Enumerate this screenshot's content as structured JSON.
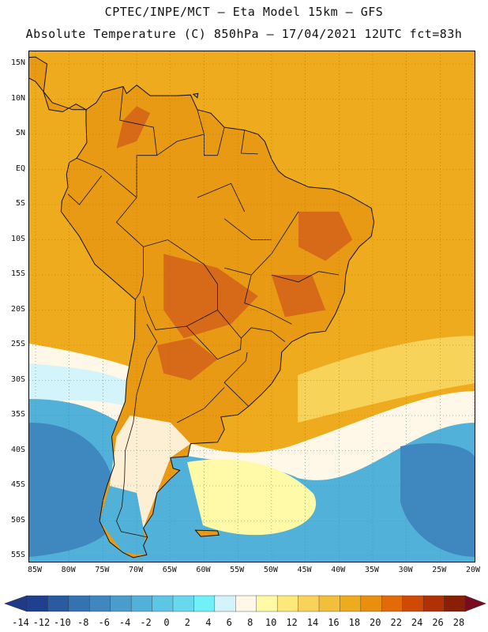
{
  "header": {
    "line1": "CPTEC/INPE/MCT –  Eta Model 15km – GFS",
    "line2": "Absolute Temperature (C) 850hPa – 17/04/2021 12UTC fct=83h"
  },
  "axes": {
    "lat_labels": [
      "15N",
      "10N",
      "5N",
      "EQ",
      "5S",
      "10S",
      "15S",
      "20S",
      "25S",
      "30S",
      "35S",
      "40S",
      "45S",
      "50S",
      "55S"
    ],
    "lon_labels": [
      "85W",
      "80W",
      "75W",
      "70W",
      "65W",
      "60W",
      "55W",
      "50W",
      "45W",
      "40W",
      "35W",
      "30W",
      "25W",
      "20W"
    ]
  },
  "colorbar": {
    "ticks": [
      "-14",
      "-12",
      "-10",
      "-8",
      "-6",
      "-4",
      "-2",
      "0",
      "2",
      "4",
      "6",
      "8",
      "10",
      "12",
      "14",
      "16",
      "18",
      "20",
      "22",
      "24",
      "26",
      "28"
    ],
    "colors": [
      "#1f3f8f",
      "#2a5aa0",
      "#3572b0",
      "#3f88bf",
      "#4a9ccb",
      "#52b1d8",
      "#5cc6e4",
      "#66d9ee",
      "#70f0f8",
      "#d4f4fb",
      "#fff8e8",
      "#fffaa8",
      "#fde87a",
      "#f8d35a",
      "#f2bf3c",
      "#efab1e",
      "#ea8e0e",
      "#e26a08",
      "#cf4a05",
      "#b03204",
      "#8a1f08"
    ],
    "under_color": "#213a86",
    "over_color": "#7a0a20"
  },
  "map": {
    "ocean_base_color": "#efab1e",
    "land_color": "#e89a14",
    "south_cold_color": "#52b1d8",
    "deep_cold_color": "#3f88bf",
    "light_color": "#fffaa8",
    "pale_color": "#fff8e8",
    "hot_color": "#d4621a"
  }
}
